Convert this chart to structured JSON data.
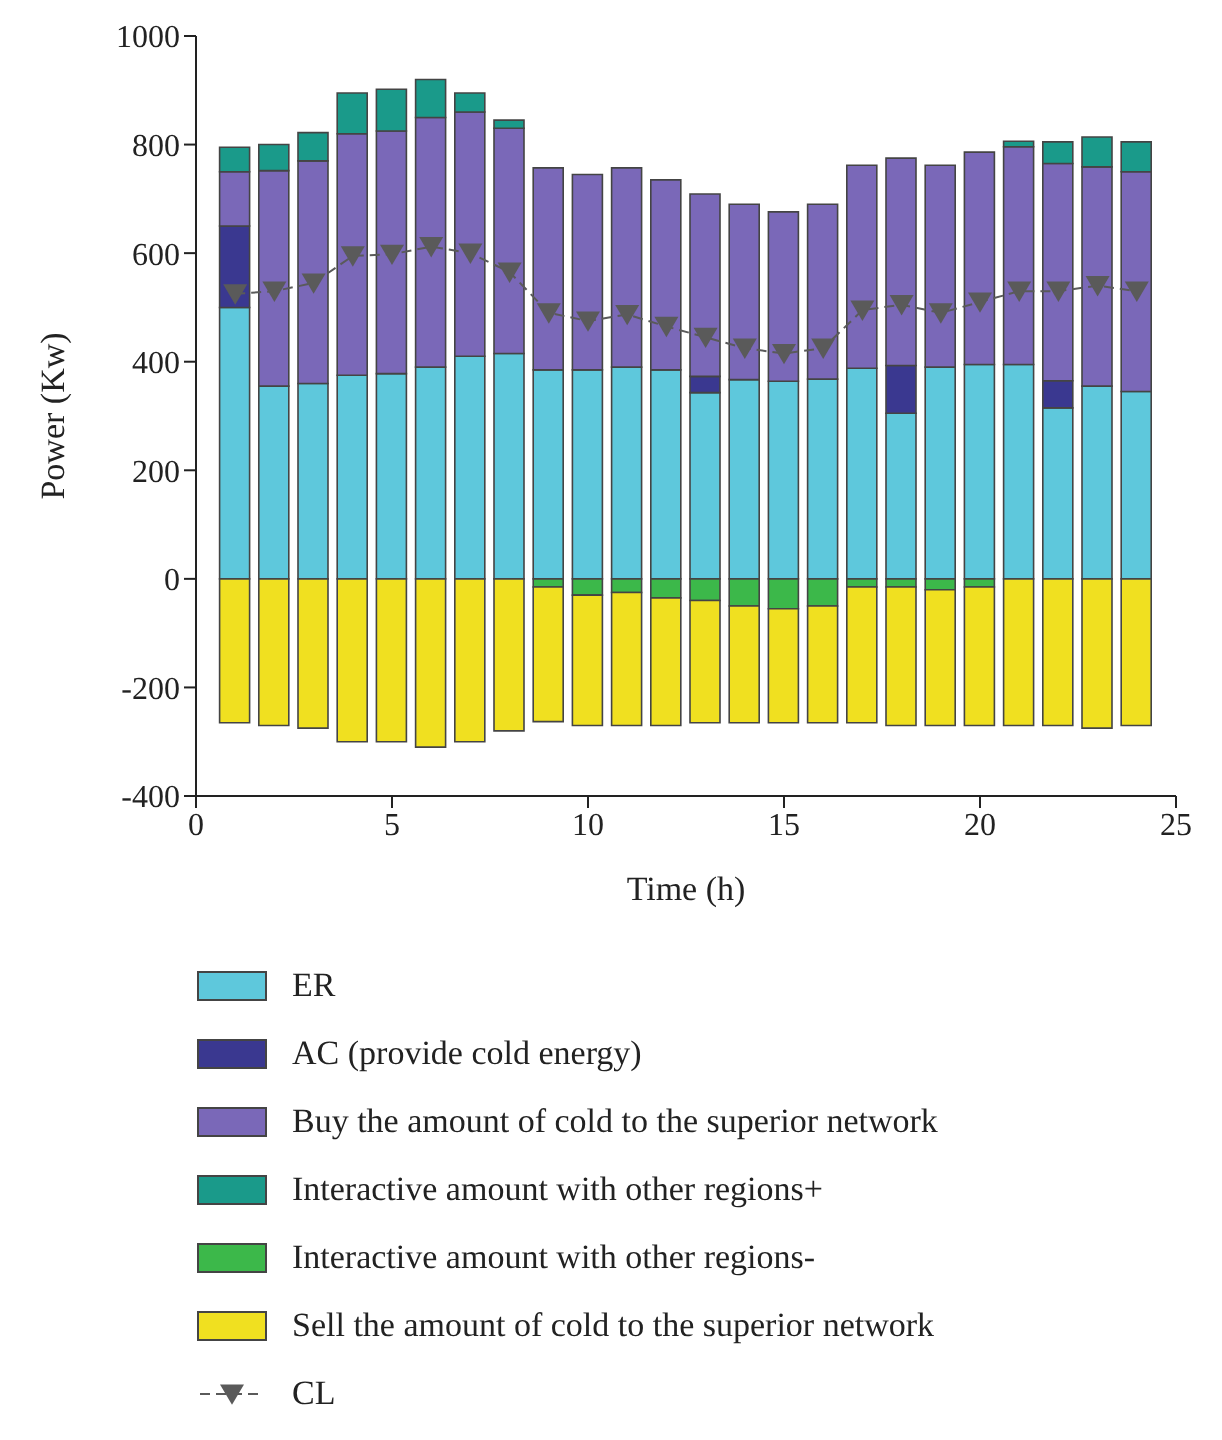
{
  "chart_data": {
    "type": "bar",
    "stacked": true,
    "xlabel": "Time (h)",
    "ylabel": "Power (Kw)",
    "xlim": [
      0,
      25
    ],
    "xticks": [
      0,
      5,
      10,
      15,
      20,
      25
    ],
    "ylim": [
      -400,
      1000
    ],
    "yticks": [
      -400,
      -200,
      0,
      200,
      400,
      600,
      800,
      1000
    ],
    "grid": false,
    "legend": "bottom",
    "x": [
      1,
      2,
      3,
      4,
      5,
      6,
      7,
      8,
      9,
      10,
      11,
      12,
      13,
      14,
      15,
      16,
      17,
      18,
      19,
      20,
      21,
      22,
      23,
      24
    ],
    "series": [
      {
        "name": "ER",
        "color": "#5ec8dc",
        "values": [
          500,
          355,
          360,
          375,
          378,
          390,
          410,
          415,
          385,
          385,
          390,
          385,
          343,
          367,
          364,
          368,
          388,
          305,
          390,
          395,
          395,
          315,
          355,
          345
        ]
      },
      {
        "name": "AC (provide cold energy)",
        "color": "#3a3890",
        "values": [
          150,
          0,
          0,
          0,
          0,
          0,
          0,
          0,
          0,
          0,
          0,
          0,
          30,
          0,
          0,
          0,
          0,
          88,
          0,
          0,
          0,
          50,
          0,
          0
        ]
      },
      {
        "name": "Buy the amount of cold to the superior network",
        "color": "#7a68b8",
        "values": [
          100,
          397,
          410,
          445,
          447,
          460,
          450,
          415,
          372,
          360,
          367,
          350,
          336,
          323,
          312,
          322,
          374,
          382,
          372,
          391,
          401,
          400,
          404,
          405
        ]
      },
      {
        "name": "Interactive amount with other regions+",
        "color": "#1a9a8a",
        "values": [
          45,
          48,
          52,
          75,
          77,
          70,
          35,
          15,
          0,
          0,
          0,
          0,
          0,
          0,
          0,
          0,
          0,
          0,
          0,
          0,
          10,
          40,
          55,
          55
        ]
      },
      {
        "name": "Interactive amount with other regions-",
        "color": "#3cb84a",
        "values": [
          0,
          0,
          0,
          0,
          0,
          0,
          0,
          0,
          -15,
          -30,
          -25,
          -35,
          -40,
          -50,
          -55,
          -50,
          -15,
          -15,
          -20,
          -15,
          0,
          0,
          0,
          0
        ]
      },
      {
        "name": "Sell the amount of cold to the superior network",
        "color": "#f0e020",
        "values": [
          -265,
          -270,
          -275,
          -300,
          -300,
          -310,
          -300,
          -280,
          -248,
          -240,
          -245,
          -235,
          -225,
          -215,
          -210,
          -215,
          -250,
          -255,
          -250,
          -255,
          -270,
          -270,
          -275,
          -270
        ]
      },
      {
        "name": "CL",
        "type": "line",
        "color": "#5a5a5a",
        "marker": "triangle",
        "line_style": "dashed",
        "values": [
          525,
          530,
          545,
          595,
          598,
          612,
          600,
          565,
          490,
          475,
          487,
          465,
          445,
          425,
          415,
          425,
          495,
          505,
          490,
          510,
          530,
          530,
          540,
          530
        ]
      }
    ]
  }
}
